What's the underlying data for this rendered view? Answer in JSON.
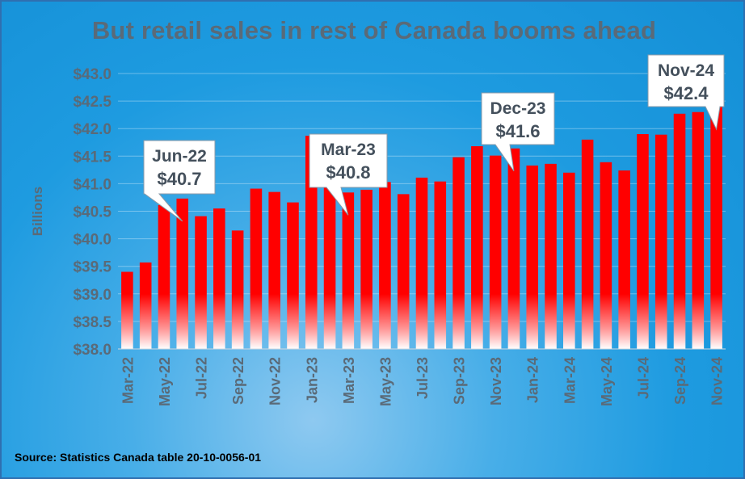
{
  "title": "But retail sales in rest of Canada booms ahead",
  "source": "Source: Statistics Canada table 20-10-0056-01",
  "colors": {
    "bar": "#ff0000",
    "bar_fade": "#ffffff",
    "axis_text": "#5a6a78",
    "background": "#1e9be0"
  },
  "chart_data": {
    "type": "bar",
    "ylabel": "Billions",
    "ylim": [
      38.0,
      43.0
    ],
    "ytick_labels": [
      "$38.0",
      "$38.5",
      "$39.0",
      "$39.5",
      "$40.0",
      "$40.5",
      "$41.0",
      "$41.5",
      "$42.0",
      "$42.5",
      "$43.0"
    ],
    "grid": true,
    "categories": [
      "Mar-22",
      "Apr-22",
      "May-22",
      "Jun-22",
      "Jul-22",
      "Aug-22",
      "Sep-22",
      "Oct-22",
      "Nov-22",
      "Dec-22",
      "Jan-23",
      "Feb-23",
      "Mar-23",
      "Apr-23",
      "May-23",
      "Jun-23",
      "Jul-23",
      "Aug-23",
      "Sep-23",
      "Oct-23",
      "Nov-23",
      "Dec-23",
      "Jan-24",
      "Feb-24",
      "Mar-24",
      "Apr-24",
      "May-24",
      "Jun-24",
      "Jul-24",
      "Aug-24",
      "Sep-24",
      "Oct-24",
      "Nov-24"
    ],
    "xtick_labels": [
      "Mar-22",
      "May-22",
      "Jul-22",
      "Sep-22",
      "Nov-22",
      "Jan-23",
      "Mar-23",
      "May-23",
      "Jul-23",
      "Sep-23",
      "Nov-23",
      "Jan-24",
      "Mar-24",
      "May-24",
      "Jul-24",
      "Sep-24",
      "Nov-24"
    ],
    "series": [
      {
        "values": [
          39.4,
          39.57,
          40.61,
          40.73,
          40.41,
          40.55,
          40.15,
          40.91,
          40.85,
          40.66,
          41.87,
          41.0,
          40.84,
          40.89,
          41.03,
          40.81,
          41.11,
          41.04,
          41.48,
          41.68,
          41.51,
          41.64,
          41.33,
          41.36,
          41.2,
          41.8,
          41.39,
          41.24,
          41.9,
          41.89,
          42.27,
          42.3,
          42.4
        ]
      }
    ],
    "annotations": [
      {
        "category": "Jun-22",
        "line1": "Jun-22",
        "line2": "$40.7"
      },
      {
        "category": "Mar-23",
        "line1": "Mar-23",
        "line2": "$40.8"
      },
      {
        "category": "Dec-23",
        "line1": "Dec-23",
        "line2": "$41.6"
      },
      {
        "category": "Nov-24",
        "line1": "Nov-24",
        "line2": "$42.4"
      }
    ]
  }
}
